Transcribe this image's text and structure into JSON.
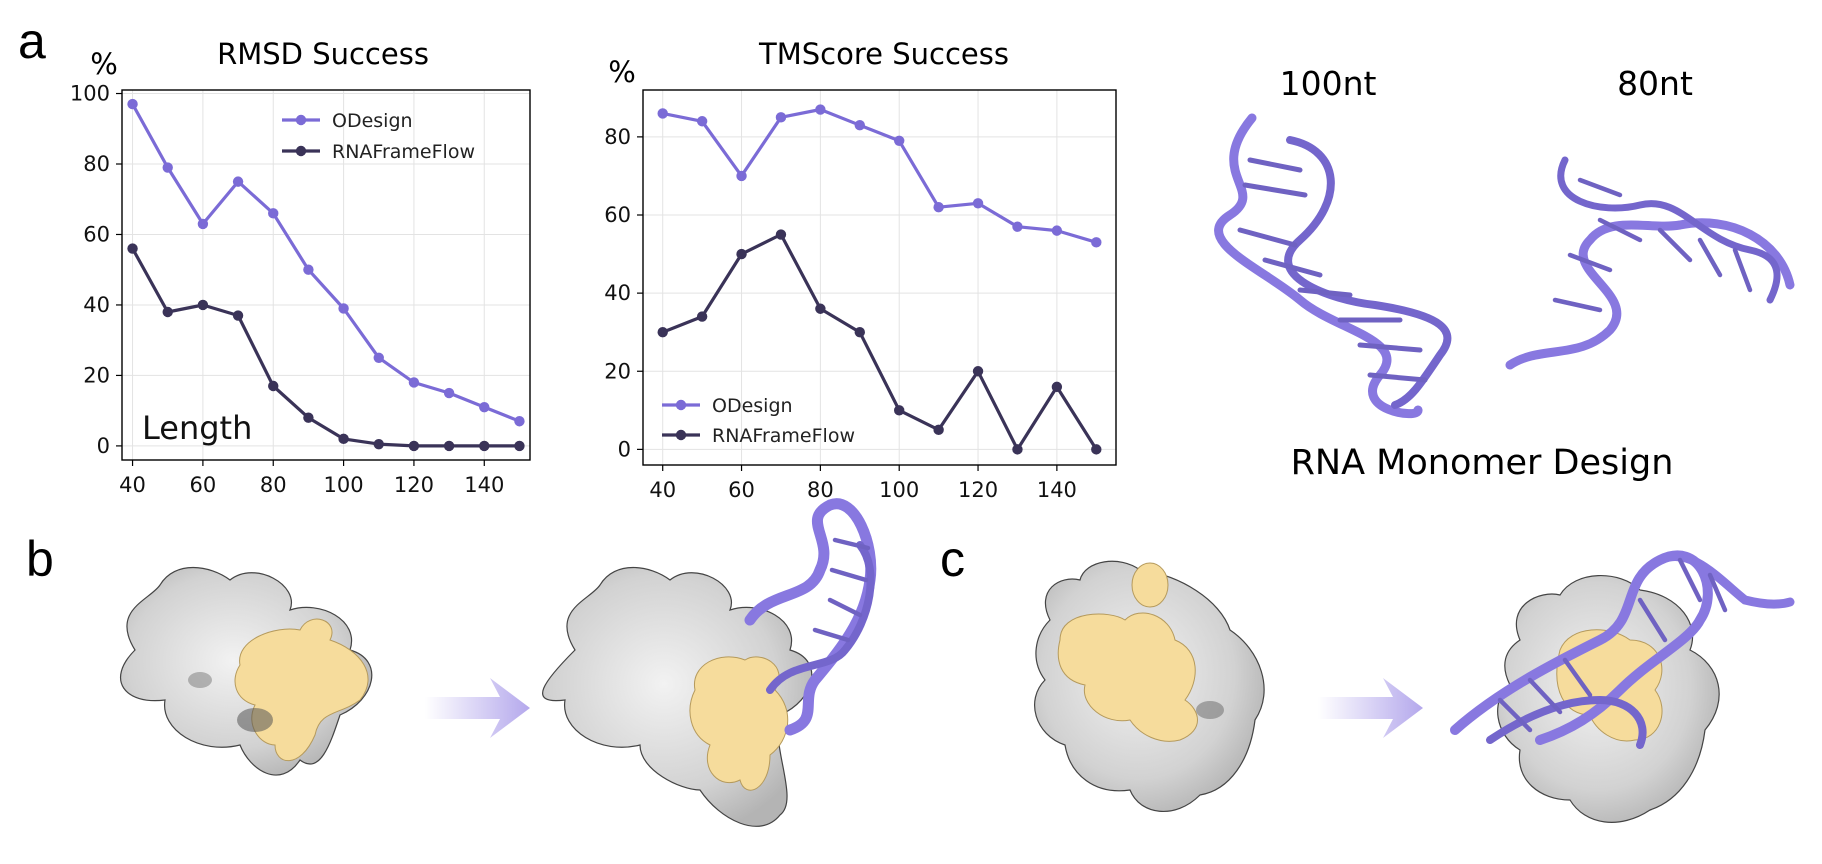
{
  "figure": {
    "panel_labels": [
      "a",
      "b",
      "c"
    ],
    "rna_monomer": {
      "label_left": "100nt",
      "label_right": "80nt",
      "caption": "RNA Monomer Design"
    }
  },
  "colors": {
    "odesign": "#7b6bd6",
    "rnaframeflow": "#3a3358",
    "rna_cartoon": "#8878e0",
    "binding_site": "#f6dc9c",
    "protein_surface": "#d6d6d6",
    "grid": "#e3e3e3"
  },
  "chart_data": [
    {
      "type": "line",
      "title": "RMSD Success",
      "ylabel": "%",
      "xlabel": "Length",
      "x": [
        40,
        50,
        60,
        70,
        80,
        90,
        100,
        110,
        120,
        130,
        140,
        150
      ],
      "xticks": [
        40,
        60,
        80,
        100,
        120,
        140
      ],
      "yticks": [
        0,
        20,
        40,
        60,
        80,
        100
      ],
      "xlim": [
        37,
        153
      ],
      "ylim": [
        -4,
        101
      ],
      "grid": true,
      "legend_position": "top-right",
      "series": [
        {
          "name": "ODesign",
          "color": "#7b6bd6",
          "values": [
            97,
            79,
            63,
            75,
            66,
            50,
            39,
            25,
            18,
            15,
            11,
            7
          ]
        },
        {
          "name": "RNAFrameFlow",
          "color": "#3a3358",
          "values": [
            56,
            38,
            40,
            37,
            17,
            8,
            2,
            0.5,
            0,
            0,
            0,
            0
          ]
        }
      ]
    },
    {
      "type": "line",
      "title": "TMScore Success",
      "ylabel": "%",
      "xlabel": "",
      "x": [
        40,
        50,
        60,
        70,
        80,
        90,
        100,
        110,
        120,
        130,
        140,
        150
      ],
      "xticks": [
        40,
        60,
        80,
        100,
        120,
        140
      ],
      "yticks": [
        0,
        20,
        40,
        60,
        80
      ],
      "xlim": [
        35,
        155
      ],
      "ylim": [
        -4,
        92
      ],
      "grid": true,
      "legend_position": "bottom-left",
      "series": [
        {
          "name": "ODesign",
          "color": "#7b6bd6",
          "values": [
            86,
            84,
            70,
            85,
            87,
            83,
            79,
            62,
            63,
            57,
            56,
            53
          ]
        },
        {
          "name": "RNAFrameFlow",
          "color": "#3a3358",
          "values": [
            30,
            34,
            50,
            55,
            36,
            30,
            10,
            5,
            20,
            0,
            16,
            0
          ]
        }
      ]
    }
  ]
}
